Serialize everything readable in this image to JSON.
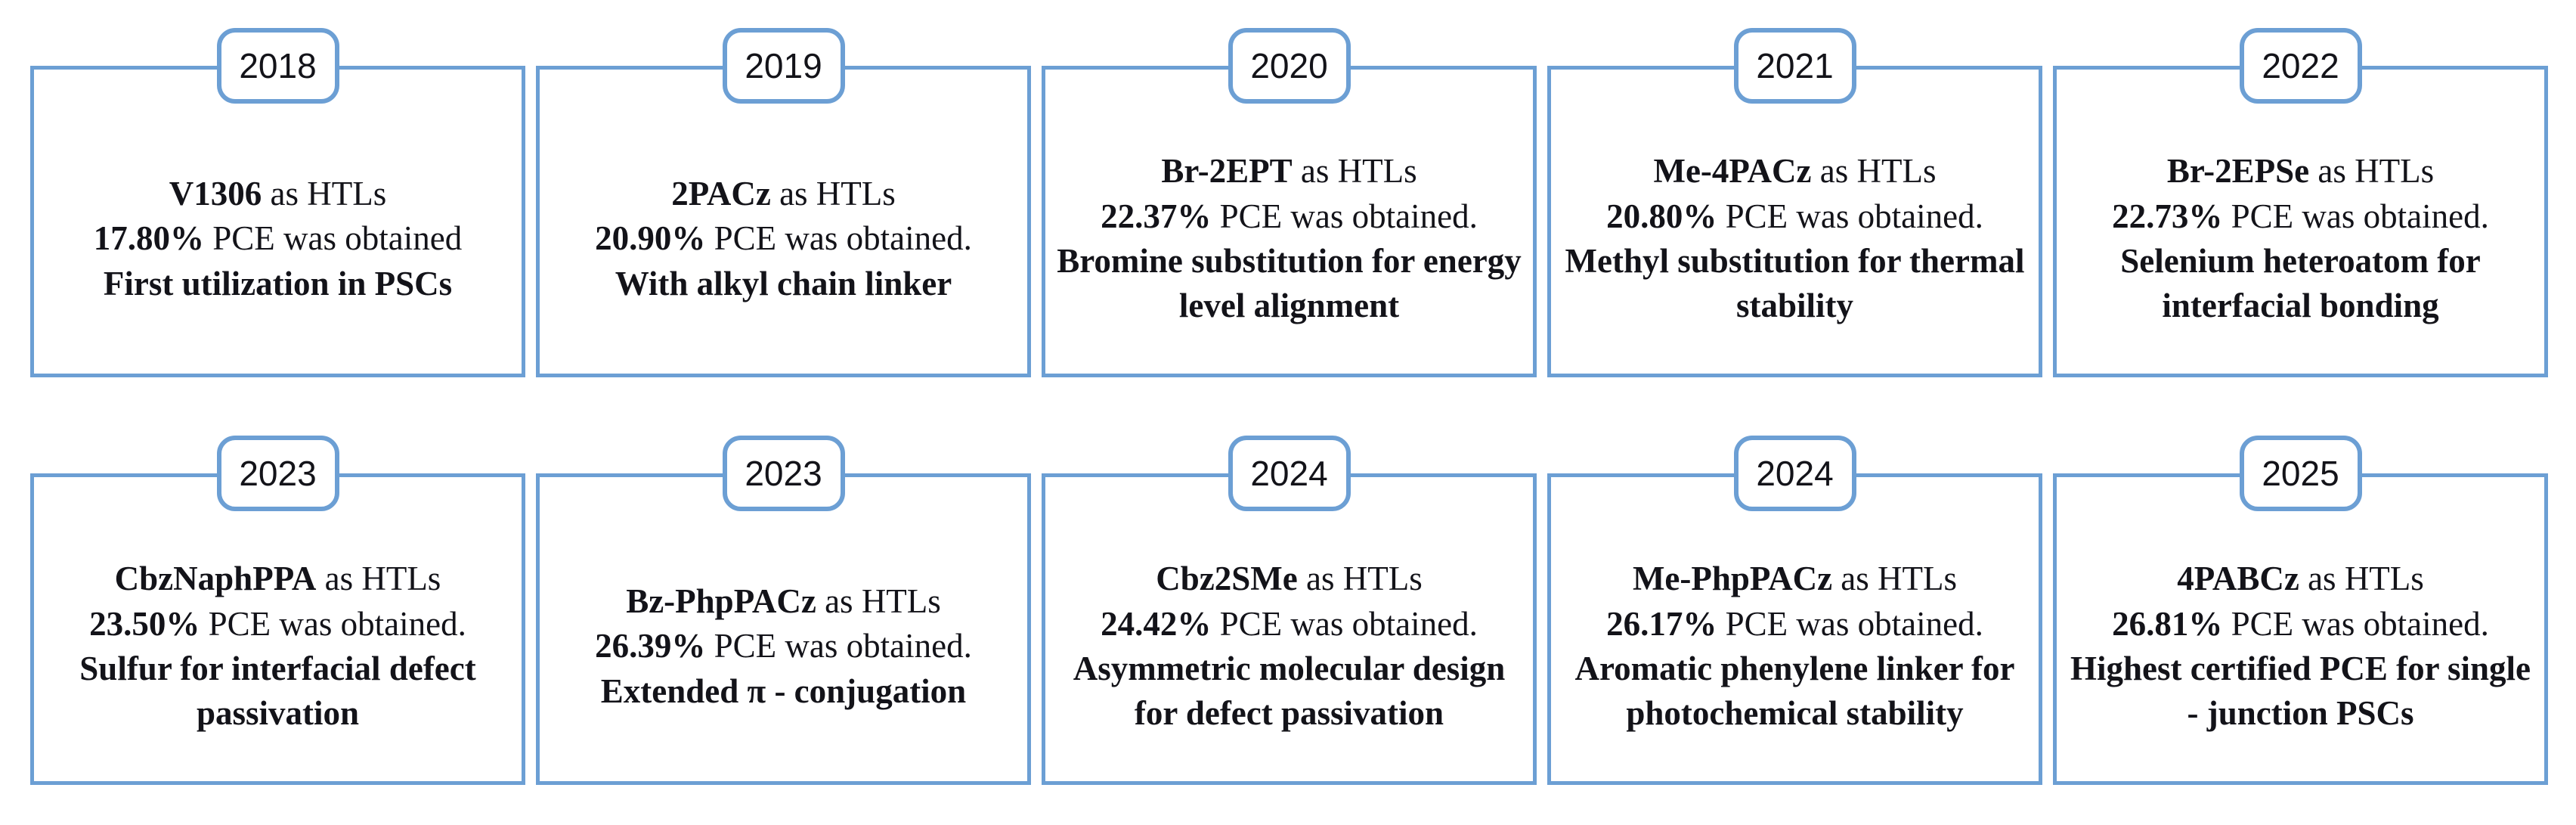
{
  "theme": {
    "accent": "#6C9FD4",
    "background": "#FFFFFF",
    "text_color": "#131319"
  },
  "timeline": {
    "description": "Timeline of self-assembled monolayer hole transport layers (HTLs) in perovskite solar cells (PSCs) with obtained PCE values, 2018-2025",
    "cards": [
      {
        "year": "2018",
        "material": "V1306",
        "material_suffix": "as HTLs",
        "pce": "17.80%",
        "pce_suffix": "PCE was obtained",
        "highlight": "First utilization in PSCs"
      },
      {
        "year": "2019",
        "material": "2PACz",
        "material_suffix": "as HTLs",
        "pce": "20.90%",
        "pce_suffix": "PCE was obtained.",
        "highlight": "With alkyl chain linker"
      },
      {
        "year": "2020",
        "material": "Br-2EPT",
        "material_suffix": "as HTLs",
        "pce": "22.37%",
        "pce_suffix": "PCE was obtained.",
        "highlight": "Bromine substitution for energy level alignment"
      },
      {
        "year": "2021",
        "material": "Me-4PACz",
        "material_suffix": "as HTLs",
        "pce": "20.80%",
        "pce_suffix": "PCE was obtained.",
        "highlight": "Methyl substitution for thermal stability"
      },
      {
        "year": "2022",
        "material": "Br-2EPSe",
        "material_suffix": "as HTLs",
        "pce": "22.73%",
        "pce_suffix": "PCE was obtained.",
        "highlight": "Selenium heteroatom for interfacial bonding"
      },
      {
        "year": "2023",
        "material": "CbzNaphPPA",
        "material_suffix": "as HTLs",
        "pce": "23.50%",
        "pce_suffix": "PCE was obtained.",
        "highlight": "Sulfur for interfacial defect passivation"
      },
      {
        "year": "2023",
        "material": "Bz-PhpPACz",
        "material_suffix": "as HTLs",
        "pce": "26.39%",
        "pce_suffix": "PCE was obtained.",
        "highlight": "Extended π - conjugation"
      },
      {
        "year": "2024",
        "material": "Cbz2SMe",
        "material_suffix": "as HTLs",
        "pce": "24.42%",
        "pce_suffix": "PCE was obtained.",
        "highlight": "Asymmetric molecular design for defect passivation"
      },
      {
        "year": "2024",
        "material": "Me-PhpPACz",
        "material_suffix": "as HTLs",
        "pce": "26.17%",
        "pce_suffix": "PCE was obtained.",
        "highlight": "Aromatic phenylene linker for photochemical stability"
      },
      {
        "year": "2025",
        "material": "4PABCz",
        "material_suffix": "as HTLs",
        "pce": "26.81%",
        "pce_suffix": "PCE was obtained.",
        "highlight": "Highest certified PCE for single - junction PSCs"
      }
    ]
  }
}
